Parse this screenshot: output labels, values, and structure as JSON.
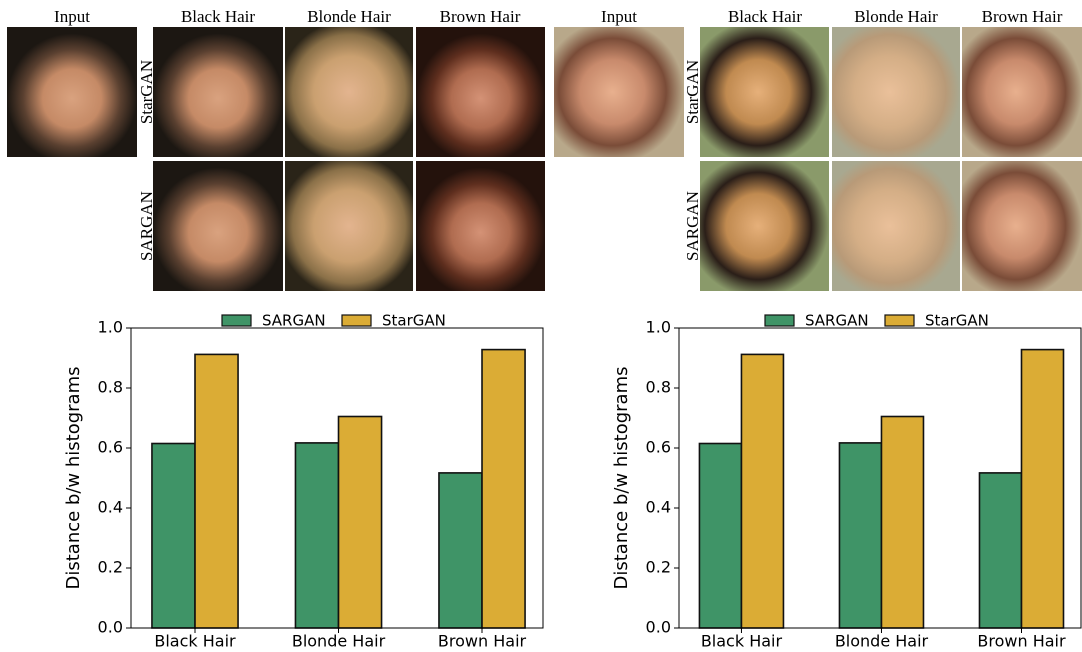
{
  "grids": [
    {
      "input_label": "Input",
      "column_labels": [
        "Black Hair",
        "Blonde Hair",
        "Brown Hair"
      ],
      "row_labels": [
        "StarGAN",
        "SARGAN"
      ]
    },
    {
      "input_label": "Input",
      "column_labels": [
        "Black Hair",
        "Blonde Hair",
        "Brown Hair"
      ],
      "row_labels": [
        "StarGAN",
        "SARGAN"
      ]
    }
  ],
  "chart_data": [
    {
      "type": "bar",
      "ylabel": "Distance b/w histograms",
      "categories": [
        "Black Hair",
        "Blonde Hair",
        "Brown Hair"
      ],
      "series": [
        {
          "name": "SARGAN",
          "color": "#3f9467",
          "values": [
            0.615,
            0.617,
            0.517
          ]
        },
        {
          "name": "StarGAN",
          "color": "#dbac35",
          "values": [
            0.912,
            0.705,
            0.928
          ]
        }
      ],
      "ylim": [
        0,
        1
      ],
      "yticks": [
        {
          "value": 0,
          "label": "0.0"
        },
        0.2,
        0.4,
        0.6,
        0.8,
        {
          "value": 1,
          "label": "1.0"
        }
      ],
      "legend": "upper center"
    },
    {
      "type": "bar",
      "ylabel": "Distance b/w histograms",
      "categories": [
        "Black Hair",
        "Blonde Hair",
        "Brown Hair"
      ],
      "series": [
        {
          "name": "SARGAN",
          "color": "#3f9467",
          "values": [
            0.615,
            0.617,
            0.517
          ]
        },
        {
          "name": "StarGAN",
          "color": "#dbac35",
          "values": [
            0.912,
            0.705,
            0.928
          ]
        }
      ],
      "ylim": [
        0,
        1
      ],
      "yticks": [
        {
          "value": 0,
          "label": "0.0"
        },
        0.2,
        0.4,
        0.6,
        0.8,
        {
          "value": 1,
          "label": "1.0"
        }
      ],
      "legend": "upper center"
    }
  ]
}
